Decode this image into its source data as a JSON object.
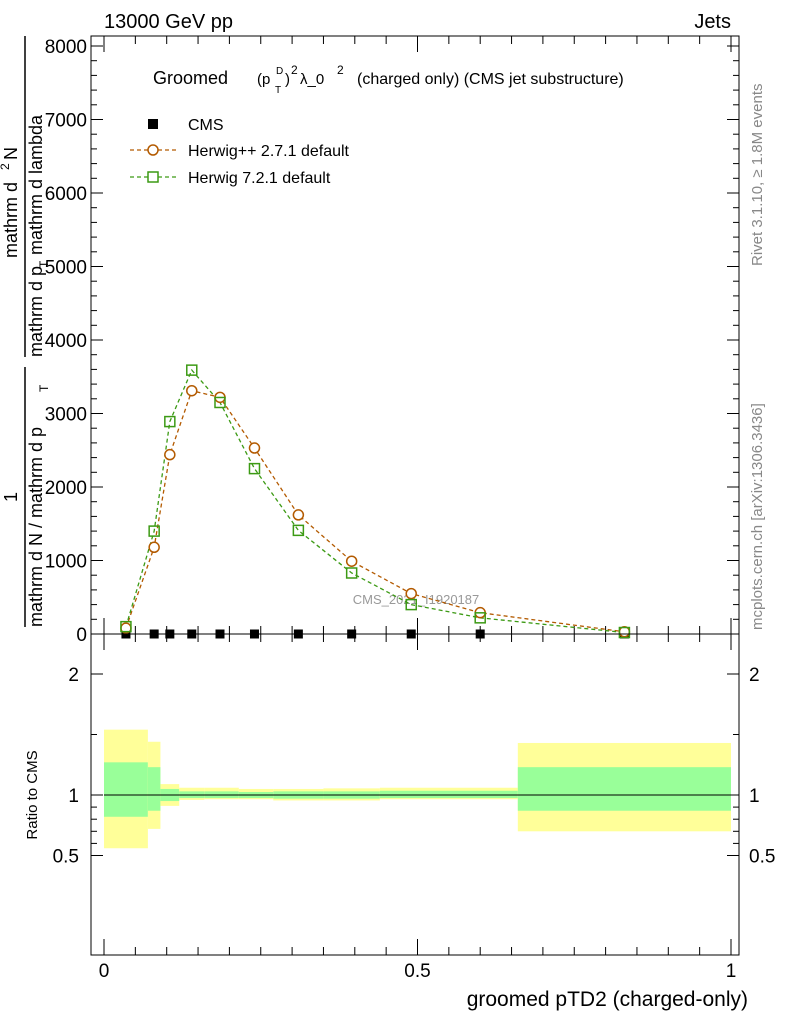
{
  "header": {
    "left": "13000 GeV pp",
    "right": "Jets"
  },
  "side_labels": {
    "rivet": "Rivet 3.1.10, ≥ 1.8M events",
    "mcplots": "mcplots.cern.ch [arXiv:1306.3436]"
  },
  "chart_data": [
    {
      "type": "line",
      "title": "Groomed (p_T^D)^2 λ_0^2  (charged only) (CMS jet substructure)",
      "title_parts": {
        "groomed": "Groomed",
        "p": "(p",
        "sub_t": "T",
        "sup_d": "D",
        "close": ")",
        "sup_2a": "2",
        "lambda": "λ_0",
        "sup_2b": "2",
        "rest": "(charged only) (CMS jet substructure)"
      },
      "ylabel_parts": {
        "frac_left_num": "1",
        "frac_left_den": "mathrm d N / mathrm d p",
        "frac_left_den_sub": "T",
        "frac_right_num": "mathrm d",
        "frac_right_num_sup": "2",
        "frac_right_num_tail": "N",
        "frac_right_den": "mathrm d p",
        "frac_right_den_sub": "T",
        "frac_right_den_tail": "mathrm d lambda"
      },
      "xlim": [
        0,
        1
      ],
      "ylim": [
        0,
        8000
      ],
      "yticks": [
        {
          "v": 0,
          "label": "0"
        },
        {
          "v": 1000,
          "label": "1000"
        },
        {
          "v": 2000,
          "label": "2000"
        },
        {
          "v": 3000,
          "label": "3000"
        },
        {
          "v": 4000,
          "label": "4000"
        },
        {
          "v": 5000,
          "label": "5000"
        },
        {
          "v": 6000,
          "label": "6000"
        },
        {
          "v": 7000,
          "label": "7000"
        },
        {
          "v": 8000,
          "label": "8000"
        }
      ],
      "legend": [
        {
          "label": "CMS",
          "marker": "filled-square",
          "color": "#000000"
        },
        {
          "label": "Herwig++ 2.7.1 default",
          "marker": "open-circle",
          "color": "#b35a00"
        },
        {
          "label": "Herwig 7.2.1 default",
          "marker": "open-square",
          "color": "#3c9a14"
        }
      ],
      "watermark": "CMS_2021_I1920187",
      "series": [
        {
          "name": "CMS",
          "x": [
            0.035,
            0.08,
            0.105,
            0.14,
            0.185,
            0.24,
            0.31,
            0.395,
            0.49,
            0.6,
            0.83
          ],
          "y": [
            0,
            0,
            0,
            0,
            0,
            0,
            0,
            0,
            0,
            0,
            0
          ]
        },
        {
          "name": "Herwig++ 2.7.1 default",
          "x": [
            0.035,
            0.08,
            0.105,
            0.14,
            0.185,
            0.24,
            0.31,
            0.395,
            0.49,
            0.6,
            0.83
          ],
          "y": [
            80,
            1180,
            2440,
            3310,
            3220,
            2530,
            1620,
            990,
            550,
            290,
            30
          ]
        },
        {
          "name": "Herwig 7.2.1 default",
          "x": [
            0.035,
            0.08,
            0.105,
            0.14,
            0.185,
            0.24,
            0.31,
            0.395,
            0.49,
            0.6,
            0.83
          ],
          "y": [
            100,
            1400,
            2890,
            3590,
            3150,
            2250,
            1410,
            830,
            400,
            220,
            20
          ]
        }
      ]
    },
    {
      "type": "area",
      "ylabel": "Ratio to CMS",
      "xlabel": "groomed pTD2 (charged-only)",
      "xlim": [
        0,
        1
      ],
      "ylim": [
        0.35,
        2.35
      ],
      "xticks": [
        {
          "v": 0,
          "label": "0"
        },
        {
          "v": 0.5,
          "label": "0.5"
        },
        {
          "v": 1,
          "label": "1"
        }
      ],
      "yticks": [
        {
          "v": 0.5,
          "label": "0.5"
        },
        {
          "v": 1,
          "label": "1"
        },
        {
          "v": 2,
          "label": "2"
        }
      ],
      "bins": [
        0,
        0.07,
        0.09,
        0.12,
        0.16,
        0.215,
        0.27,
        0.35,
        0.44,
        0.66,
        1.0
      ],
      "outer_band": {
        "color": "#ffff99",
        "low": [
          0.56,
          0.72,
          0.91,
          0.96,
          0.965,
          0.965,
          0.955,
          0.955,
          0.965,
          0.7
        ],
        "high": [
          1.54,
          1.44,
          1.09,
          1.06,
          1.06,
          1.05,
          1.05,
          1.055,
          1.06,
          1.43
        ]
      },
      "inner_band": {
        "color": "#99ff99",
        "low": [
          0.82,
          0.87,
          0.95,
          0.975,
          0.975,
          0.975,
          0.97,
          0.97,
          0.975,
          0.87
        ],
        "high": [
          1.27,
          1.23,
          1.05,
          1.03,
          1.03,
          1.025,
          1.03,
          1.03,
          1.035,
          1.23
        ]
      },
      "reference_line": 1
    }
  ]
}
